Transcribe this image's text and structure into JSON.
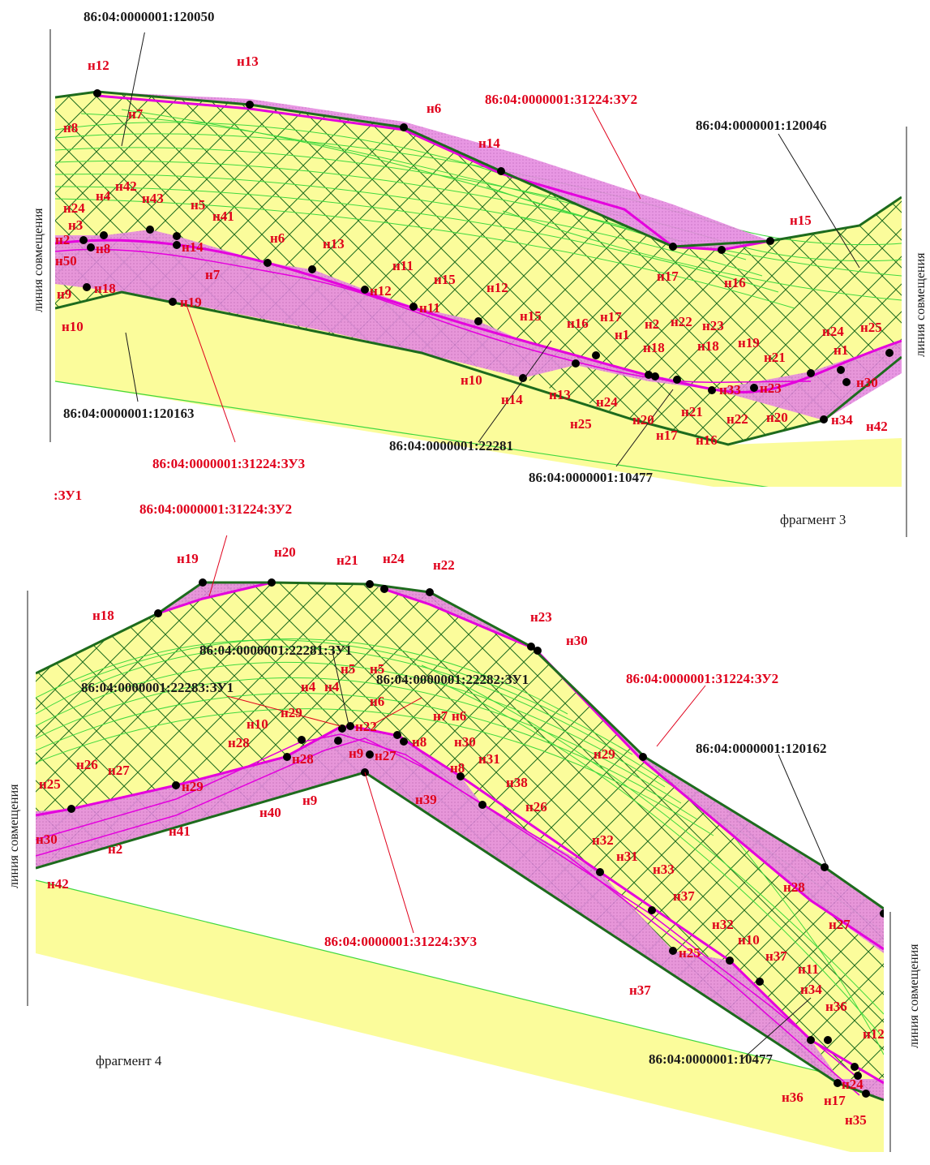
{
  "colors": {
    "background": "#ffffff",
    "yellow_fill": "#fbfc9b",
    "magenta_fill": "#e58be0",
    "magenta_line": "#e400dd",
    "boundary_green": "#1d6b1d",
    "hatch_green": "#1d6b1d",
    "contour_green": "#3fd83f",
    "label_red": "#e0001b",
    "label_black": "#1a1a1a"
  },
  "side_labels": {
    "fragment3_left": "линия совмещения",
    "fragment3_right": "линия совмещения",
    "fragment4_left": "линия совмещения",
    "fragment4_right": "линия совмещения"
  },
  "fragment_labels": {
    "fragment3": "фрагмент 3",
    "fragment4": "фрагмент 4"
  },
  "fragment3": {
    "cadastral_labels": [
      {
        "id": "c120050",
        "text": "86:04:0000001:120050",
        "color": "black"
      },
      {
        "id": "c31224zu2",
        "text": "86:04:0000001:31224:ЗУ2",
        "color": "red"
      },
      {
        "id": "c120046",
        "text": "86:04:0000001:120046",
        "color": "black"
      },
      {
        "id": "c120163",
        "text": "86:04:0000001:120163",
        "color": "black"
      },
      {
        "id": "c31224zu3",
        "text": "86:04:0000001:31224:ЗУ3",
        "color": "red"
      },
      {
        "id": "c22281",
        "text": "86:04:0000001:22281",
        "color": "black"
      },
      {
        "id": "c10477",
        "text": "86:04:0000001:10477",
        "color": "black"
      },
      {
        "id": "czu1",
        "text": ":ЗУ1",
        "color": "red"
      }
    ],
    "point_labels": [
      "н12",
      "н13",
      "н8",
      "н7",
      "н6",
      "н14",
      "н15",
      "н16",
      "н17",
      "н42",
      "н43",
      "н24",
      "н4",
      "н3",
      "н8",
      "н5",
      "н41",
      "н14",
      "н6",
      "н13",
      "н7",
      "н18",
      "н9",
      "н10",
      "н19",
      "н11",
      "н12",
      "н15",
      "н11",
      "н12",
      "н15",
      "н16",
      "н17",
      "н1",
      "н2",
      "н22",
      "н23",
      "н18",
      "н18",
      "н19",
      "н21",
      "н24",
      "н25",
      "н1",
      "н10",
      "н14",
      "н13",
      "н24",
      "н25",
      "н20",
      "н17",
      "н21",
      "н16",
      "н33",
      "н23",
      "н22",
      "н20",
      "н34",
      "н42",
      "н30",
      "н50",
      "н2"
    ]
  },
  "fragment4": {
    "cadastral_labels": [
      {
        "id": "d31224zu2a",
        "text": "86:04:0000001:31224:ЗУ2",
        "color": "red"
      },
      {
        "id": "d22281zu1",
        "text": "86:04:0000001:22281:ЗУ1",
        "color": "black"
      },
      {
        "id": "d22283zu1",
        "text": "86:04:0000001:22283:ЗУ1",
        "color": "black"
      },
      {
        "id": "d22282zu1",
        "text": "86:04:0000001:22282:ЗУ1",
        "color": "black"
      },
      {
        "id": "d31224zu2b",
        "text": "86:04:0000001:31224:ЗУ2",
        "color": "red"
      },
      {
        "id": "d120162",
        "text": "86:04:0000001:120162",
        "color": "black"
      },
      {
        "id": "d31224zu3",
        "text": "86:04:0000001:31224:ЗУ3",
        "color": "red"
      },
      {
        "id": "d10477",
        "text": "86:04:0000001:10477",
        "color": "black"
      }
    ],
    "point_labels": [
      "н19",
      "н20",
      "н21",
      "н24",
      "н22",
      "н18",
      "н23",
      "н30",
      "н5",
      "н5",
      "н4",
      "н4",
      "н6",
      "н7",
      "н6",
      "н29",
      "н22",
      "н10",
      "н28",
      "н8",
      "н30",
      "н9",
      "н27",
      "н28",
      "н31",
      "н26",
      "н27",
      "н25",
      "н29",
      "н8",
      "н38",
      "н26",
      "н40",
      "н9",
      "н39",
      "н41",
      "н30",
      "н2",
      "н42",
      "н29",
      "н32",
      "н31",
      "н33",
      "н37",
      "н28",
      "н27",
      "н32",
      "н10",
      "н25",
      "н37",
      "н11",
      "н37",
      "н34",
      "н36",
      "н12",
      "н24",
      "н17",
      "н36",
      "н35"
    ]
  }
}
